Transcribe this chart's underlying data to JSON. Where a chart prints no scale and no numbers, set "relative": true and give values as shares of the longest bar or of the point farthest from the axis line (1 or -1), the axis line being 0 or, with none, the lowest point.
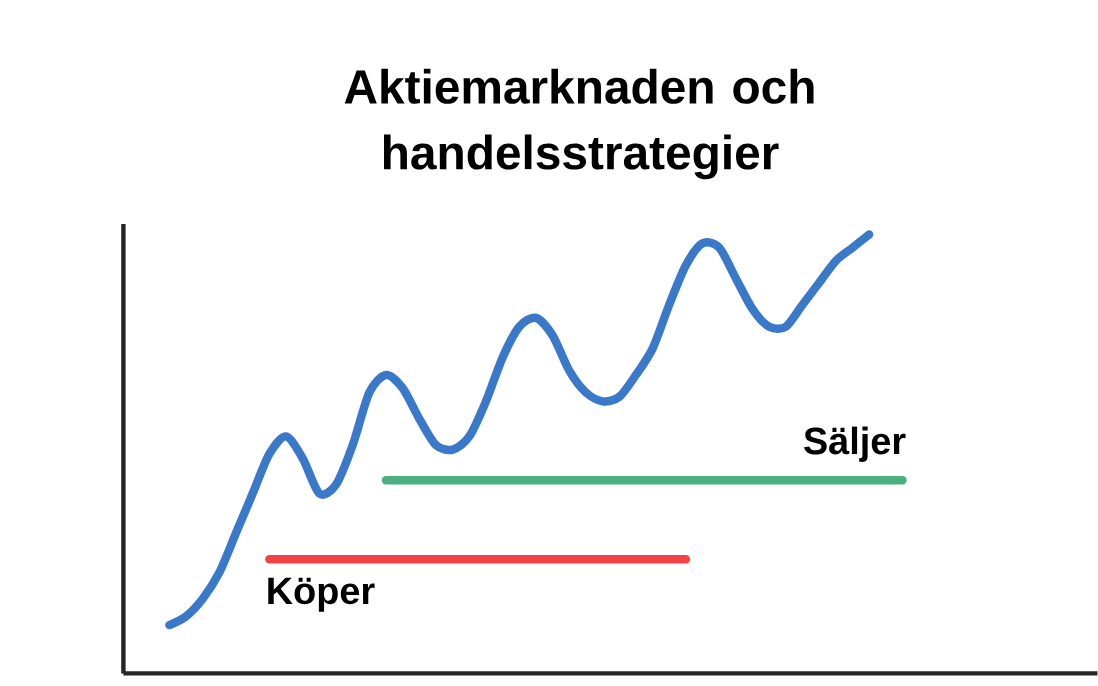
{
  "chart_data": {
    "type": "line",
    "title": "Aktiemarknaden och handelsstrategier",
    "relative": true,
    "marker": "none",
    "line_style": "solid",
    "categories": [
      null,
      null,
      null,
      null,
      null,
      null,
      null,
      null,
      null,
      null,
      null,
      null,
      null,
      null,
      null,
      null,
      null,
      null,
      null,
      null,
      null,
      null,
      null,
      null,
      null,
      null,
      null,
      null,
      null,
      null,
      null,
      null,
      null,
      null,
      null,
      null,
      null,
      null,
      null,
      null,
      null,
      null,
      null,
      null,
      null
    ],
    "series": [
      {
        "color": "#3a78c9",
        "values": [
          0.11,
          0.13,
          0.17,
          0.23,
          0.32,
          0.41,
          0.5,
          0.54,
          0.49,
          0.41,
          0.43,
          0.52,
          0.64,
          0.68,
          0.65,
          0.58,
          0.52,
          0.51,
          0.54,
          0.62,
          0.72,
          0.79,
          0.81,
          0.77,
          0.69,
          0.64,
          0.62,
          0.63,
          0.68,
          0.74,
          0.84,
          0.93,
          0.98,
          0.97,
          0.9,
          0.83,
          0.79,
          0.79,
          0.84,
          0.89,
          0.94,
          0.97,
          1.0,
          null,
          null
        ]
      },
      {
        "name": "Köper",
        "color": "#f04444",
        "values": [
          null,
          null,
          null,
          null,
          null,
          null,
          0.26,
          0.26,
          0.26,
          0.26,
          0.26,
          0.26,
          0.26,
          0.26,
          0.26,
          0.26,
          0.26,
          0.26,
          0.26,
          0.26,
          0.26,
          0.26,
          0.26,
          0.26,
          0.26,
          0.26,
          0.26,
          0.26,
          0.26,
          0.26,
          0.26,
          0.26,
          null,
          null,
          null,
          null,
          null,
          null,
          null,
          null,
          null,
          null,
          null,
          null,
          null
        ]
      },
      {
        "name": "Säljer",
        "color": "#4caf80",
        "values": [
          null,
          null,
          null,
          null,
          null,
          null,
          null,
          null,
          null,
          null,
          null,
          null,
          null,
          0.44,
          0.44,
          0.44,
          0.44,
          0.44,
          0.44,
          0.44,
          0.44,
          0.44,
          0.44,
          0.44,
          0.44,
          0.44,
          0.44,
          0.44,
          0.44,
          0.44,
          0.44,
          0.44,
          0.44,
          0.44,
          0.44,
          0.44,
          0.44,
          0.44,
          0.44,
          0.44,
          0.44,
          0.44,
          0.44,
          0.44,
          0.44
        ]
      }
    ]
  }
}
